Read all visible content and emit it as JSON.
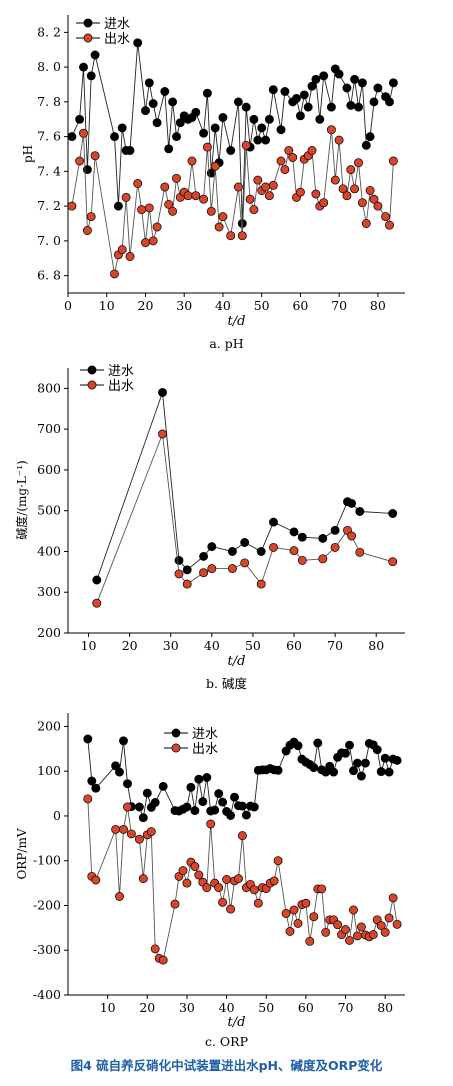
{
  "colors": {
    "inflow": "#000000",
    "outflow": "#d9452b",
    "axis": "#000000"
  },
  "figure_caption": "图4   硫自养反硝化中试装置进出水pH、碱度及ORP变化",
  "chart_data": [
    {
      "type": "line",
      "panel_label": "a. pH",
      "xlabel": "t/d",
      "ylabel": "pH",
      "xlim": [
        0,
        87
      ],
      "ylim": [
        6.7,
        8.3
      ],
      "xticks": [
        0,
        10,
        20,
        30,
        40,
        50,
        60,
        70,
        80
      ],
      "yticks": [
        6.8,
        7.0,
        7.2,
        7.4,
        7.6,
        7.8,
        8.0,
        8.2
      ],
      "ytick_labels": [
        "6. 8",
        "7. 0",
        "7. 2",
        "7. 4",
        "7. 6",
        "7. 8",
        "8. 0",
        "8. 2"
      ],
      "grid": false,
      "legend_position": "top-left",
      "series": [
        {
          "name": "进水",
          "color": "#000000",
          "x": [
            1,
            3,
            4,
            5,
            6,
            7,
            12,
            13,
            14,
            15,
            16,
            18,
            20,
            21,
            22,
            23,
            25,
            26,
            27,
            28,
            29,
            30,
            31,
            32,
            33,
            35,
            36,
            37,
            38,
            39,
            40,
            42,
            44,
            45,
            46,
            47,
            48,
            49,
            50,
            51,
            52,
            53,
            55,
            56,
            58,
            59,
            60,
            61,
            62,
            63,
            64,
            65,
            66,
            68,
            69,
            70,
            72,
            73,
            74,
            75,
            76,
            77,
            78,
            79,
            80,
            82,
            83,
            84
          ],
          "y": [
            7.6,
            7.7,
            8.0,
            7.41,
            7.95,
            8.07,
            7.6,
            7.2,
            7.65,
            7.52,
            7.52,
            8.14,
            7.75,
            7.91,
            7.79,
            7.68,
            7.86,
            7.53,
            7.8,
            7.6,
            7.68,
            7.72,
            7.7,
            7.71,
            7.74,
            7.62,
            7.85,
            7.39,
            7.65,
            7.45,
            7.71,
            7.52,
            7.8,
            7.1,
            7.77,
            7.54,
            7.7,
            7.58,
            7.65,
            7.58,
            7.7,
            7.87,
            7.64,
            7.86,
            7.8,
            7.82,
            7.72,
            7.84,
            7.77,
            7.89,
            7.93,
            7.7,
            7.95,
            7.77,
            7.99,
            7.96,
            7.88,
            7.78,
            7.93,
            7.77,
            7.91,
            7.55,
            7.6,
            7.8,
            7.88,
            7.83,
            7.8,
            7.91
          ]
        },
        {
          "name": "出水",
          "color": "#d9452b",
          "x": [
            1,
            3,
            4,
            5,
            6,
            7,
            12,
            13,
            14,
            15,
            16,
            18,
            19,
            20,
            21,
            22,
            23,
            25,
            26,
            27,
            28,
            29,
            30,
            31,
            32,
            33,
            35,
            36,
            37,
            38,
            39,
            40,
            42,
            44,
            45,
            46,
            47,
            48,
            49,
            50,
            51,
            52,
            53,
            55,
            56,
            57,
            58,
            59,
            60,
            61,
            62,
            63,
            64,
            65,
            66,
            68,
            69,
            70,
            71,
            72,
            73,
            74,
            75,
            76,
            77,
            78,
            79,
            80,
            82,
            83,
            84
          ],
          "y": [
            7.2,
            7.46,
            7.62,
            7.06,
            7.14,
            7.49,
            6.81,
            6.92,
            6.95,
            7.25,
            6.91,
            7.33,
            7.18,
            6.99,
            7.19,
            7.0,
            7.08,
            7.31,
            7.21,
            7.17,
            7.36,
            7.25,
            7.28,
            7.26,
            7.46,
            7.26,
            7.24,
            7.54,
            7.17,
            7.43,
            7.08,
            7.14,
            7.03,
            7.31,
            7.03,
            7.55,
            7.24,
            7.18,
            7.35,
            7.29,
            7.31,
            7.26,
            7.32,
            7.46,
            7.41,
            7.52,
            7.48,
            7.25,
            7.28,
            7.47,
            7.49,
            7.52,
            7.27,
            7.2,
            7.22,
            7.64,
            7.35,
            7.58,
            7.3,
            7.26,
            7.41,
            7.3,
            7.45,
            7.22,
            7.1,
            7.29,
            7.24,
            7.2,
            7.14,
            7.09,
            7.46
          ]
        }
      ]
    },
    {
      "type": "line",
      "panel_label": "b. 碱度",
      "xlabel": "t/d",
      "ylabel": "碱度/(mg·L⁻¹)",
      "xlim": [
        5,
        87
      ],
      "ylim": [
        200,
        850
      ],
      "xticks": [
        10,
        20,
        30,
        40,
        50,
        60,
        70,
        80
      ],
      "yticks": [
        200,
        300,
        400,
        500,
        600,
        700,
        800
      ],
      "grid": false,
      "legend_position": "top-left",
      "series": [
        {
          "name": "进水",
          "color": "#000000",
          "x": [
            12,
            28,
            32,
            34,
            38,
            40,
            45,
            48,
            52,
            55,
            60,
            62,
            67,
            70,
            73,
            74,
            76,
            84
          ],
          "y": [
            330,
            790,
            378,
            355,
            388,
            412,
            400,
            422,
            400,
            472,
            448,
            435,
            432,
            452,
            522,
            518,
            498,
            493
          ]
        },
        {
          "name": "出水",
          "color": "#d9452b",
          "x": [
            12,
            28,
            32,
            34,
            38,
            40,
            45,
            48,
            52,
            55,
            60,
            62,
            67,
            70,
            73,
            74,
            76,
            84
          ],
          "y": [
            273,
            688,
            345,
            320,
            348,
            358,
            358,
            372,
            320,
            410,
            402,
            378,
            382,
            410,
            452,
            438,
            398,
            375
          ]
        }
      ]
    },
    {
      "type": "line",
      "panel_label": "c. ORP",
      "xlabel": "t/d",
      "ylabel": "ORP/mV",
      "xlim": [
        0,
        85
      ],
      "ylim": [
        -400,
        230
      ],
      "xticks": [
        10,
        20,
        30,
        40,
        50,
        60,
        70,
        80
      ],
      "yticks": [
        -400,
        -300,
        -200,
        -100,
        0,
        100,
        200
      ],
      "grid": false,
      "legend_position": "top-center",
      "series": [
        {
          "name": "进水",
          "color": "#000000",
          "x": [
            5,
            6,
            7,
            12,
            13,
            14,
            15,
            16,
            18,
            19,
            20,
            21,
            22,
            24,
            27,
            28,
            29,
            30,
            31,
            32,
            33,
            34,
            35,
            36,
            37,
            38,
            39,
            40,
            41,
            42,
            43,
            44,
            45,
            46,
            47,
            48,
            49,
            50,
            51,
            52,
            53,
            55,
            56,
            57,
            58,
            59,
            60,
            61,
            62,
            63,
            64,
            65,
            66,
            67,
            68,
            69,
            70,
            71,
            72,
            73,
            74,
            75,
            76,
            77,
            78,
            79,
            80,
            81,
            82,
            83
          ],
          "y": [
            172,
            78,
            62,
            112,
            98,
            168,
            72,
            21,
            20,
            -4,
            51,
            19,
            30,
            66,
            12,
            11,
            15,
            20,
            64,
            12,
            82,
            32,
            86,
            11,
            13,
            50,
            31,
            10,
            1,
            42,
            23,
            22,
            2,
            22,
            20,
            102,
            103,
            103,
            106,
            103,
            102,
            145,
            158,
            165,
            157,
            127,
            120,
            115,
            108,
            163,
            103,
            98,
            111,
            98,
            131,
            141,
            140,
            158,
            101,
            118,
            89,
            118,
            162,
            159,
            148,
            99,
            129,
            98,
            127,
            124
          ]
        },
        {
          "name": "出水",
          "color": "#d9452b",
          "x": [
            5,
            6,
            7,
            12,
            13,
            14,
            15,
            16,
            18,
            19,
            20,
            21,
            22,
            23,
            24,
            27,
            28,
            29,
            30,
            31,
            32,
            33,
            34,
            35,
            36,
            37,
            38,
            39,
            40,
            41,
            42,
            43,
            44,
            45,
            46,
            47,
            48,
            49,
            50,
            51,
            52,
            53,
            55,
            56,
            57,
            58,
            59,
            60,
            61,
            62,
            63,
            64,
            65,
            66,
            67,
            68,
            69,
            70,
            71,
            72,
            73,
            74,
            75,
            76,
            77,
            78,
            79,
            80,
            81,
            82,
            83
          ],
          "y": [
            38,
            -135,
            -143,
            -30,
            -180,
            -30,
            20,
            -40,
            -52,
            -140,
            -42,
            -35,
            -297,
            -318,
            -322,
            -197,
            -135,
            -122,
            -150,
            -103,
            -113,
            -132,
            -148,
            -160,
            -18,
            -150,
            -160,
            -193,
            -142,
            -208,
            -145,
            -140,
            -44,
            -160,
            -153,
            -165,
            -195,
            -160,
            -162,
            -150,
            -145,
            -100,
            -218,
            -258,
            -210,
            -240,
            -198,
            -195,
            -280,
            -225,
            -163,
            -163,
            -260,
            -232,
            -232,
            -243,
            -265,
            -254,
            -278,
            -210,
            -268,
            -248,
            -266,
            -270,
            -265,
            -232,
            -245,
            -260,
            -228,
            -183,
            -242
          ]
        }
      ]
    }
  ]
}
